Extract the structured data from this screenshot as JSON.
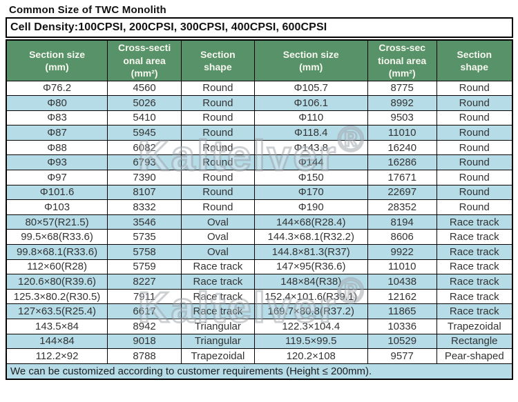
{
  "page": {
    "title": "Common Size of TWC Monolith"
  },
  "banner": {
    "text": "Cell Density:100CPSI, 200CPSI, 300CPSI, 400CPSI, 600CPSI"
  },
  "watermark": {
    "text": "Kaltelver",
    "reg": "®"
  },
  "colors": {
    "header_bg": "#579268",
    "header_text": "#f7f7f0",
    "row_alt_bg": "#b6dce8",
    "row_bg": "#ffffff",
    "border": "#000000",
    "cell_text": "#333333"
  },
  "table": {
    "headers": [
      "Section size\n(mm)",
      "Cross-secti\nonal area\n(mm²)",
      "Section\nshape",
      "Section size\n(mm)",
      "Cross-sec\ntional area\n(mm²)",
      "Section\nshape"
    ],
    "rows": [
      [
        "Φ76.2",
        "4560",
        "Round",
        "Φ105.7",
        "8775",
        "Round"
      ],
      [
        "Φ80",
        "5026",
        "Round",
        "Φ106.1",
        "8992",
        "Round"
      ],
      [
        "Φ83",
        "5410",
        "Round",
        "Φ110",
        "9503",
        "Round"
      ],
      [
        "Φ87",
        "5945",
        "Round",
        "Φ118.4",
        "11010",
        "Round"
      ],
      [
        "Φ88",
        "6082",
        "Round",
        "Φ143.8",
        "16240",
        "Round"
      ],
      [
        "Φ93",
        "6793",
        "Round",
        "Φ144",
        "16286",
        "Round"
      ],
      [
        "Φ97",
        "7390",
        "Round",
        "Φ150",
        "17671",
        "Round"
      ],
      [
        "Φ101.6",
        "8107",
        "Round",
        "Φ170",
        "22697",
        "Round"
      ],
      [
        "Φ103",
        "8332",
        "Round",
        "Φ190",
        "28352",
        "Round"
      ],
      [
        "80×57(R21.5)",
        "3546",
        "Oval",
        "144×68(R28.4)",
        "8194",
        "Race track"
      ],
      [
        "99.5×68(R33.6)",
        "5735",
        "Oval",
        "144.3×68.1(R32.2)",
        "8606",
        "Race track"
      ],
      [
        "99.8×68.1(R33.6)",
        "5758",
        "Oval",
        "144.8×81.3(R37)",
        "9922",
        "Race track"
      ],
      [
        "112×60(R28)",
        "5759",
        "Race track",
        "147×95(R36.6)",
        "11010",
        "Race track"
      ],
      [
        "120.6×80(R39.6)",
        "8227",
        "Race track",
        "148×84(R38)",
        "10438",
        "Race track"
      ],
      [
        "125.3×80.2(R30.5)",
        "7911",
        "Race track",
        "152.4×101.6(R39.1)",
        "12162",
        "Race track"
      ],
      [
        "127×63.5(R25.4)",
        "6617",
        "Race track",
        "169.7×80.8(R37.2)",
        "11865",
        "Race track"
      ],
      [
        "143.5×84",
        "8942",
        "Triangular",
        "122.3×104.4",
        "10336",
        "Trapezoidal"
      ],
      [
        "144×84",
        "9018",
        "Triangular",
        "119.5×99.5",
        "10529",
        "Rectangle"
      ],
      [
        "112.2×92",
        "8788",
        "Trapezoidal",
        "120.2×108",
        "9577",
        "Pear-shaped"
      ]
    ],
    "footer": "We can be customized according to customer requirements (Height ≤ 200mm)."
  }
}
